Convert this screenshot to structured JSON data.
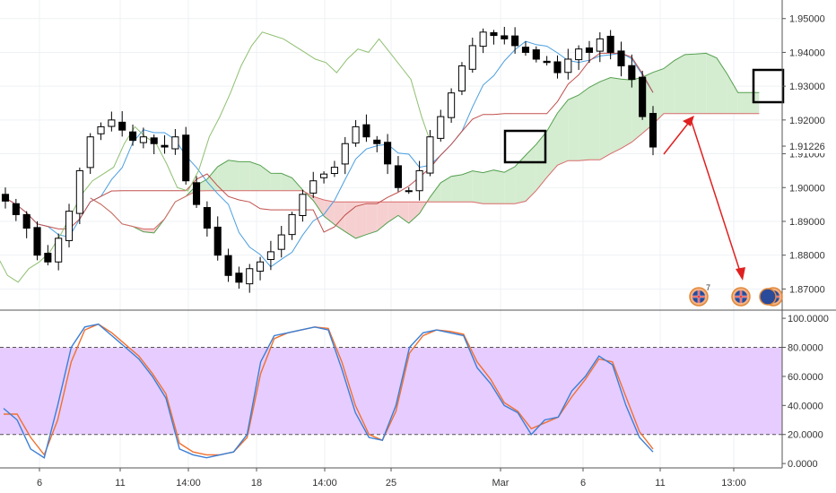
{
  "colors": {
    "up_candle": "#ffffff",
    "down_candle": "#000000",
    "tenkan": "#4a9fe0",
    "kijun": "#c0504d",
    "chikou": "#8fbf70",
    "cloud_bull": "#d4ecd0",
    "cloud_bear": "#f6d0d0",
    "span_a": "#55a04f",
    "span_b": "#d96a6a",
    "stoch_k": "#3a7fd5",
    "stoch_d": "#f07030",
    "stoch_band": "#e6ccff",
    "arrow": "#e02020",
    "current_price_bg": "#ffffff"
  },
  "icons": [
    "uk-flag-icon",
    "uk-flag-icon",
    "uk-au-flag-icon"
  ],
  "event_badge": "7",
  "current_price_label": "1.91226",
  "price_axis": {
    "ticks": [
      "1.95000",
      "1.94000",
      "1.93000",
      "1.92000",
      "1.91000",
      "1.90000",
      "1.89000",
      "1.88000",
      "1.87000"
    ],
    "range": [
      1.864,
      1.9555
    ]
  },
  "stoch_axis": {
    "ticks": [
      "100.0000",
      "80.0000",
      "60.0000",
      "40.0000",
      "20.0000",
      "0.0000"
    ],
    "range": [
      -3,
      105
    ],
    "band": [
      20,
      80
    ]
  },
  "time_axis": {
    "ticks": [
      "6",
      "11",
      "14:00",
      "18",
      "14:00",
      "25",
      "Mar",
      "6",
      "11",
      "13:00"
    ]
  },
  "chart_data": {
    "type": "candlestick",
    "series": [
      {
        "name": "Price",
        "values": [
          1.896,
          1.892,
          1.888,
          1.88,
          1.878,
          1.885,
          1.893,
          1.905,
          1.915,
          1.918,
          1.92,
          1.917,
          1.914,
          1.915,
          1.913,
          1.912,
          1.915,
          1.902,
          1.895,
          1.888,
          1.88,
          1.874,
          1.872,
          1.876,
          1.878,
          1.881,
          1.886,
          1.892,
          1.898,
          1.902,
          1.904,
          1.906,
          1.913,
          1.918,
          1.915,
          1.913,
          1.907,
          1.9,
          1.899,
          1.905,
          1.915,
          1.921,
          1.928,
          1.936,
          1.942,
          1.946,
          1.945,
          1.944,
          1.942,
          1.94,
          1.938,
          1.937,
          1.934,
          1.938,
          1.941,
          1.94,
          1.944,
          1.94,
          1.936,
          1.932,
          1.921,
          1.912
        ]
      },
      {
        "name": "Stochastic %K",
        "values": [
          38,
          30,
          10,
          4,
          40,
          80,
          94,
          96,
          88,
          80,
          72,
          60,
          45,
          10,
          6,
          4,
          6,
          8,
          20,
          70,
          88,
          90,
          92,
          94,
          92,
          65,
          35,
          18,
          16,
          40,
          80,
          90,
          92,
          90,
          88,
          66,
          55,
          40,
          35,
          20,
          30,
          32,
          50,
          60,
          74,
          68,
          40,
          18,
          8
        ]
      },
      {
        "name": "Stochastic %D",
        "values": [
          34,
          34,
          18,
          6,
          30,
          70,
          92,
          96,
          90,
          82,
          74,
          62,
          48,
          14,
          8,
          6,
          6,
          8,
          18,
          62,
          86,
          90,
          92,
          94,
          93,
          70,
          40,
          20,
          16,
          36,
          76,
          88,
          92,
          91,
          89,
          70,
          58,
          42,
          36,
          24,
          28,
          32,
          46,
          58,
          72,
          70,
          46,
          22,
          10
        ]
      }
    ]
  }
}
